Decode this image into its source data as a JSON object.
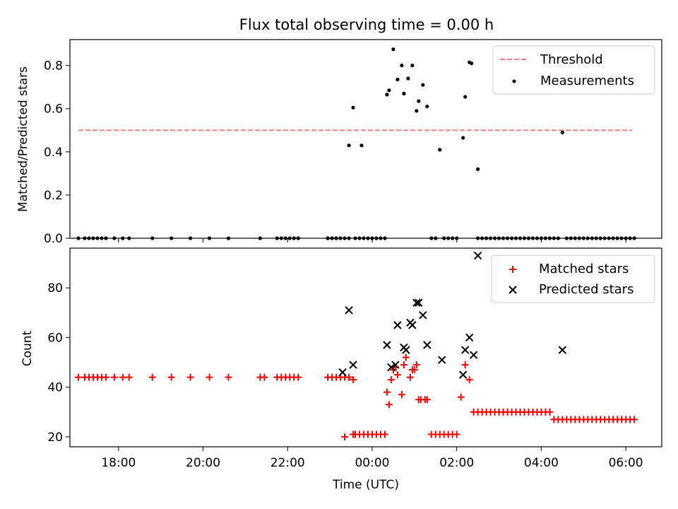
{
  "chart_data": [
    {
      "type": "scatter",
      "title": "Flux total observing time = 0.00 h",
      "xlabel": "",
      "ylabel": "Matched/Predicted stars",
      "xlim": [
        -7.15,
        6.85
      ],
      "ylim": [
        0,
        0.92
      ],
      "xticks": [
        -6,
        -4,
        -2,
        0,
        2,
        4,
        6
      ],
      "yticks": [
        0.0,
        0.2,
        0.4,
        0.6,
        0.8
      ],
      "ytick_labels": [
        "0.0",
        "0.2",
        "0.4",
        "0.6",
        "0.8"
      ],
      "legend_position": "top-right",
      "threshold": {
        "name": "Threshold",
        "value": 0.5,
        "x_range": [
          -6.95,
          6.15
        ],
        "color": "#ff7f7f"
      },
      "series": [
        {
          "name": "Measurements",
          "color": "#000000",
          "x": [
            -6.95,
            -6.8,
            -6.7,
            -6.6,
            -6.5,
            -6.4,
            -6.3,
            -6.1,
            -5.9,
            -5.75,
            -5.2,
            -4.75,
            -4.3,
            -3.85,
            -3.4,
            -2.65,
            -2.25,
            -2.15,
            -2.05,
            -1.95,
            -1.85,
            -1.75,
            -1.05,
            -0.95,
            -0.85,
            -0.75,
            -0.65,
            -0.55,
            -1.75,
            -1.05,
            -0.95,
            -0.85,
            -0.75,
            -0.4,
            -0.3,
            -0.2,
            -0.1,
            0.0,
            0.1,
            0.2,
            0.3,
            -0.55,
            -0.45,
            -0.25,
            0.35,
            0.4,
            0.5,
            0.6,
            0.7,
            0.75,
            0.85,
            0.95,
            1.05,
            1.1,
            1.2,
            1.3,
            1.4,
            1.5,
            1.6,
            1.7,
            1.8,
            1.9,
            2.0,
            2.15,
            2.2,
            2.3,
            2.35,
            2.5,
            2.5,
            2.6,
            2.7,
            2.8,
            2.9,
            3.0,
            3.1,
            3.2,
            3.3,
            3.4,
            3.5,
            3.6,
            3.7,
            3.8,
            3.9,
            4.0,
            4.1,
            4.2,
            4.3,
            4.4,
            4.5,
            4.6,
            4.7,
            4.8,
            4.9,
            5.0,
            5.1,
            5.2,
            5.3,
            5.4,
            5.5,
            5.6,
            5.7,
            5.8,
            5.9,
            6.0,
            6.1,
            6.2
          ],
          "y": [
            0,
            0,
            0,
            0,
            0,
            0,
            0,
            0,
            0,
            0,
            0,
            0,
            0,
            0,
            0,
            0,
            0,
            0,
            0,
            0,
            0,
            0,
            0,
            0,
            0,
            0,
            0,
            0,
            0,
            0,
            0,
            0,
            0,
            0,
            0,
            0,
            0,
            0,
            0,
            0,
            0,
            0.43,
            0.605,
            0.43,
            0.665,
            0.685,
            0.875,
            0.735,
            0.8,
            0.67,
            0.74,
            0.8,
            0.59,
            0.635,
            0.71,
            0.61,
            0,
            0,
            0.41,
            0,
            0,
            0,
            0,
            0.465,
            0.655,
            0.815,
            0.81,
            0.32,
            0,
            0,
            0,
            0,
            0,
            0,
            0,
            0,
            0,
            0,
            0,
            0,
            0,
            0,
            0,
            0,
            0,
            0,
            0,
            0,
            0.49,
            0,
            0,
            0,
            0,
            0,
            0,
            0,
            0,
            0,
            0,
            0,
            0,
            0,
            0,
            0,
            0,
            0
          ]
        }
      ]
    },
    {
      "type": "scatter",
      "title": "",
      "xlabel": "Time (UTC)",
      "ylabel": "Count",
      "xlim": [
        -7.15,
        6.85
      ],
      "ylim": [
        16,
        96
      ],
      "xticks": [
        -6,
        -4,
        -2,
        0,
        2,
        4,
        6
      ],
      "xtick_labels": [
        "18:00",
        "20:00",
        "22:00",
        "00:00",
        "02:00",
        "04:00",
        "06:00"
      ],
      "yticks": [
        20,
        40,
        60,
        80
      ],
      "ytick_labels": [
        "20",
        "40",
        "60",
        "80"
      ],
      "legend_position": "top-right",
      "series": [
        {
          "name": "Matched stars",
          "marker": "+",
          "color": "#ff0000",
          "x": [
            -6.95,
            -6.8,
            -6.7,
            -6.6,
            -6.5,
            -6.4,
            -6.3,
            -6.1,
            -5.9,
            -5.75,
            -5.2,
            -4.75,
            -4.3,
            -3.85,
            -3.4,
            -2.65,
            -2.55,
            -2.25,
            -2.15,
            -2.05,
            -1.95,
            -1.85,
            -1.75,
            -1.05,
            -0.95,
            -0.85,
            -0.75,
            -0.65,
            -0.55,
            -0.45,
            -0.65,
            -0.45,
            -0.4,
            -0.3,
            -0.2,
            -0.1,
            0.0,
            0.1,
            0.2,
            0.3,
            0.35,
            0.4,
            0.45,
            0.5,
            0.55,
            0.6,
            0.7,
            0.75,
            0.8,
            0.9,
            0.95,
            1.0,
            1.05,
            1.1,
            1.15,
            1.25,
            1.3,
            1.4,
            1.5,
            1.6,
            1.7,
            1.8,
            1.9,
            2.0,
            2.1,
            2.2,
            2.3,
            2.4,
            2.5,
            2.6,
            2.7,
            2.8,
            2.9,
            3.0,
            3.1,
            3.2,
            3.3,
            3.4,
            3.5,
            3.6,
            3.7,
            3.8,
            3.9,
            4.0,
            4.1,
            4.2,
            4.3,
            4.4,
            4.5,
            4.6,
            4.7,
            4.8,
            4.9,
            5.0,
            5.1,
            5.2,
            5.3,
            5.4,
            5.5,
            5.6,
            5.7,
            5.8,
            5.9,
            6.0,
            6.1,
            6.2
          ],
          "y": [
            44,
            44,
            44,
            44,
            44,
            44,
            44,
            44,
            44,
            44,
            44,
            44,
            44,
            44,
            44,
            44,
            44,
            44,
            44,
            44,
            44,
            44,
            44,
            44,
            44,
            44,
            44,
            44,
            44,
            43,
            20,
            21,
            21,
            21,
            21,
            21,
            21,
            21,
            21,
            21,
            38,
            33,
            43,
            47,
            48,
            45,
            37,
            49,
            52,
            44,
            47,
            47,
            49,
            35,
            35,
            35,
            35,
            21,
            21,
            21,
            21,
            21,
            21,
            21,
            36,
            49,
            43,
            30,
            30,
            30,
            30,
            30,
            30,
            30,
            30,
            30,
            30,
            30,
            30,
            30,
            30,
            30,
            30,
            30,
            30,
            30,
            27,
            27,
            27,
            27,
            27,
            27,
            27,
            27,
            27,
            27,
            27,
            27,
            27,
            27,
            27,
            27,
            27,
            27,
            27,
            27
          ]
        },
        {
          "name": "Predicted stars",
          "marker": "x",
          "color": "#000000",
          "x": [
            -0.7,
            -0.55,
            -0.45,
            0.35,
            0.45,
            0.55,
            0.6,
            0.75,
            0.8,
            0.9,
            0.95,
            1.05,
            1.1,
            1.2,
            1.3,
            1.65,
            2.15,
            2.2,
            2.3,
            2.4,
            2.5,
            4.5
          ],
          "y": [
            46,
            71,
            49,
            57,
            48,
            49,
            65,
            56,
            55,
            66,
            65,
            74,
            74,
            69,
            57,
            51,
            45,
            55,
            60,
            53,
            93,
            55
          ]
        }
      ]
    }
  ]
}
